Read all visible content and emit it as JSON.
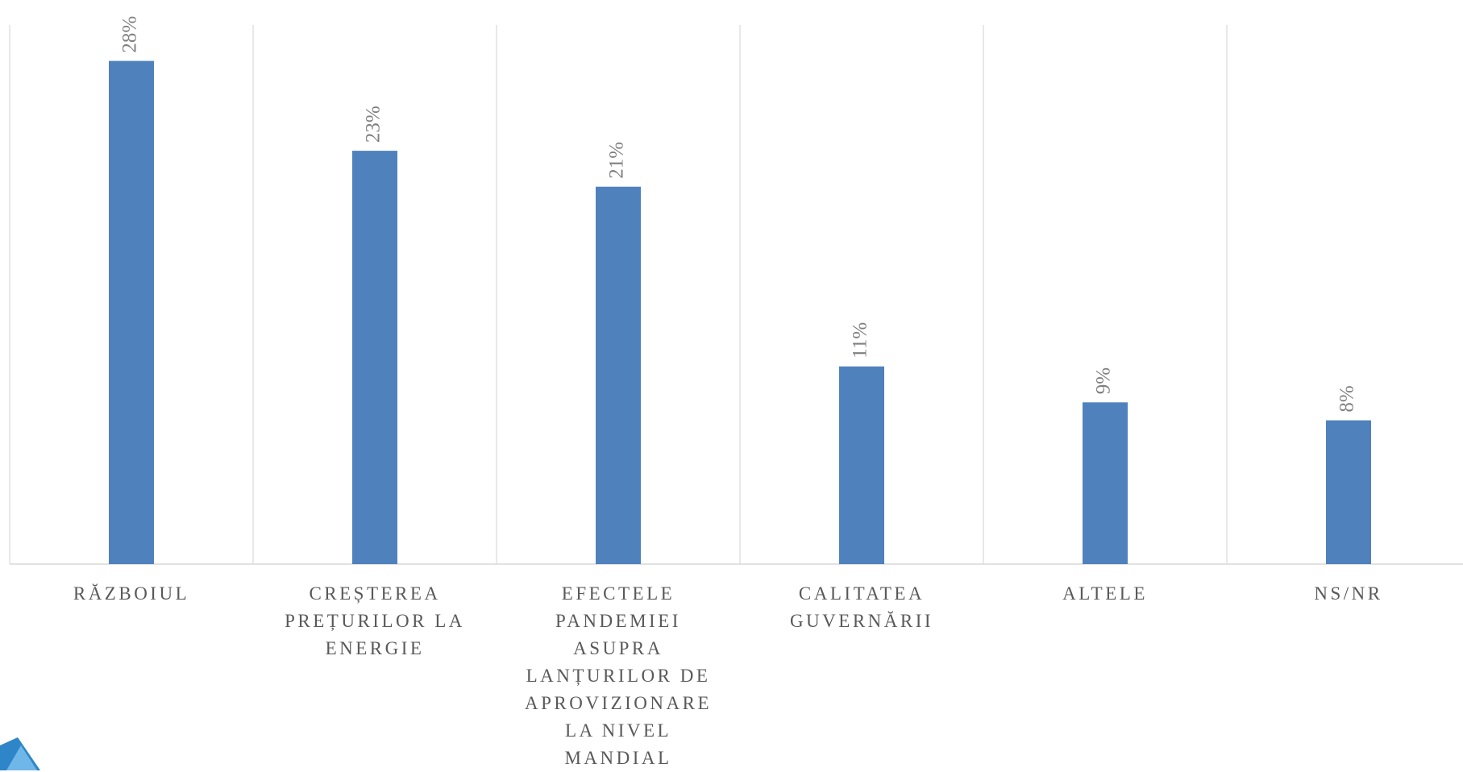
{
  "chart_data": {
    "type": "bar",
    "categories": [
      "RĂZBOIUL",
      "CREȘTEREA PREȚURILOR LA ENERGIE",
      "EFECTELE PANDEMIEI ASUPRA LANȚURILOR DE APROVIZIONARE LA NIVEL MANDIAL",
      "CALITATEA GUVERNĂRII",
      "ALTELE",
      "NS/NR"
    ],
    "values": [
      28,
      23,
      21,
      11,
      9,
      8
    ],
    "value_labels": [
      "28%",
      "23%",
      "21%",
      "11%",
      "9%",
      "8%"
    ],
    "color": "#4f81bd",
    "ylim": [
      0,
      30
    ]
  }
}
